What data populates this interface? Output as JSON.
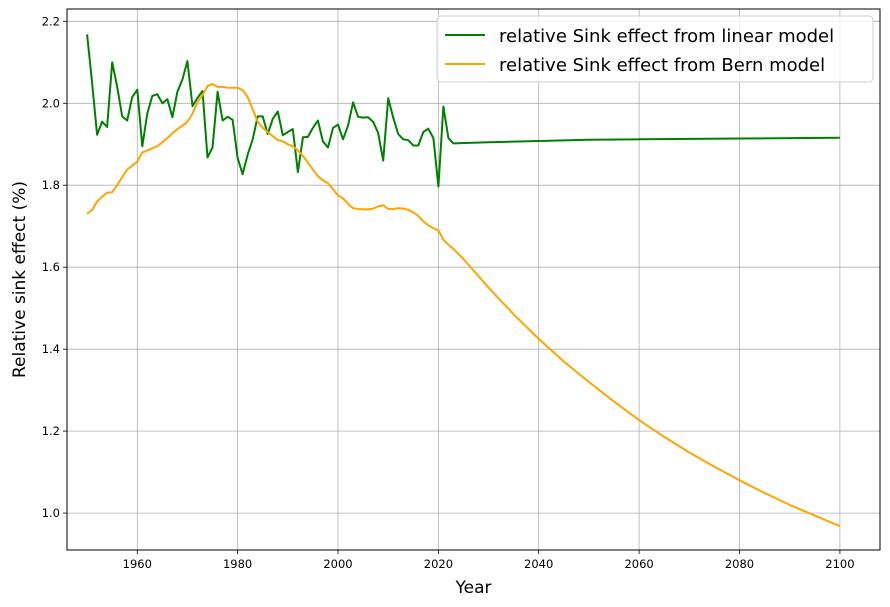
{
  "chart_data": {
    "type": "line",
    "title": "",
    "xlabel": "Year",
    "ylabel": "Relative sink effect (%)",
    "xlim": [
      1946,
      2108
    ],
    "ylim": [
      0.91,
      2.23
    ],
    "xticks": [
      1960,
      1980,
      2000,
      2020,
      2040,
      2060,
      2080,
      2100
    ],
    "yticks": [
      1.0,
      1.2,
      1.4,
      1.6,
      1.8,
      2.0,
      2.2
    ],
    "grid": true,
    "legend_position": "top-right",
    "series": [
      {
        "name": "relative Sink effect from linear model",
        "color": "#008000",
        "points": [
          [
            1950,
            2.168
          ],
          [
            1951,
            2.05
          ],
          [
            1952,
            1.923
          ],
          [
            1953,
            1.955
          ],
          [
            1954,
            1.942
          ],
          [
            1955,
            2.1
          ],
          [
            1956,
            2.04
          ],
          [
            1957,
            1.968
          ],
          [
            1958,
            1.958
          ],
          [
            1959,
            2.015
          ],
          [
            1960,
            2.033
          ],
          [
            1961,
            1.895
          ],
          [
            1962,
            1.975
          ],
          [
            1963,
            2.018
          ],
          [
            1964,
            2.022
          ],
          [
            1965,
            2.0
          ],
          [
            1966,
            2.01
          ],
          [
            1967,
            1.966
          ],
          [
            1968,
            2.028
          ],
          [
            1969,
            2.058
          ],
          [
            1970,
            2.103
          ],
          [
            1971,
            1.993
          ],
          [
            1972,
            2.013
          ],
          [
            1973,
            2.03
          ],
          [
            1974,
            1.868
          ],
          [
            1975,
            1.892
          ],
          [
            1976,
            2.028
          ],
          [
            1977,
            1.958
          ],
          [
            1978,
            1.967
          ],
          [
            1979,
            1.96
          ],
          [
            1980,
            1.867
          ],
          [
            1981,
            1.827
          ],
          [
            1982,
            1.875
          ],
          [
            1983,
            1.912
          ],
          [
            1984,
            1.968
          ],
          [
            1985,
            1.968
          ],
          [
            1986,
            1.925
          ],
          [
            1987,
            1.962
          ],
          [
            1988,
            1.98
          ],
          [
            1989,
            1.922
          ],
          [
            1990,
            1.93
          ],
          [
            1991,
            1.937
          ],
          [
            1992,
            1.832
          ],
          [
            1993,
            1.917
          ],
          [
            1994,
            1.918
          ],
          [
            1995,
            1.94
          ],
          [
            1996,
            1.958
          ],
          [
            1997,
            1.907
          ],
          [
            1998,
            1.892
          ],
          [
            1999,
            1.94
          ],
          [
            2000,
            1.948
          ],
          [
            2001,
            1.912
          ],
          [
            2002,
            1.945
          ],
          [
            2003,
            2.002
          ],
          [
            2004,
            1.967
          ],
          [
            2005,
            1.965
          ],
          [
            2006,
            1.966
          ],
          [
            2007,
            1.955
          ],
          [
            2008,
            1.928
          ],
          [
            2009,
            1.86
          ],
          [
            2010,
            2.012
          ],
          [
            2011,
            1.965
          ],
          [
            2012,
            1.925
          ],
          [
            2013,
            1.912
          ],
          [
            2014,
            1.91
          ],
          [
            2015,
            1.897
          ],
          [
            2016,
            1.897
          ],
          [
            2017,
            1.93
          ],
          [
            2018,
            1.938
          ],
          [
            2019,
            1.915
          ],
          [
            2020,
            1.797
          ],
          [
            2021,
            1.992
          ],
          [
            2022,
            1.915
          ],
          [
            2023,
            1.902
          ],
          [
            2030,
            1.905
          ],
          [
            2040,
            1.908
          ],
          [
            2050,
            1.911
          ],
          [
            2060,
            1.912
          ],
          [
            2070,
            1.913
          ],
          [
            2080,
            1.914
          ],
          [
            2090,
            1.915
          ],
          [
            2100,
            1.916
          ]
        ]
      },
      {
        "name": "relative Sink effect from Bern model",
        "color": "#FFA500",
        "points": [
          [
            1950,
            1.73
          ],
          [
            1951,
            1.74
          ],
          [
            1952,
            1.76
          ],
          [
            1953,
            1.772
          ],
          [
            1954,
            1.782
          ],
          [
            1955,
            1.783
          ],
          [
            1956,
            1.8
          ],
          [
            1957,
            1.82
          ],
          [
            1958,
            1.838
          ],
          [
            1959,
            1.848
          ],
          [
            1960,
            1.858
          ],
          [
            1961,
            1.88
          ],
          [
            1962,
            1.885
          ],
          [
            1963,
            1.89
          ],
          [
            1964,
            1.895
          ],
          [
            1965,
            1.905
          ],
          [
            1966,
            1.915
          ],
          [
            1967,
            1.927
          ],
          [
            1968,
            1.937
          ],
          [
            1969,
            1.945
          ],
          [
            1970,
            1.955
          ],
          [
            1971,
            1.975
          ],
          [
            1972,
            2.002
          ],
          [
            1973,
            2.02
          ],
          [
            1974,
            2.042
          ],
          [
            1975,
            2.047
          ],
          [
            1976,
            2.04
          ],
          [
            1977,
            2.04
          ],
          [
            1978,
            2.038
          ],
          [
            1979,
            2.038
          ],
          [
            1980,
            2.038
          ],
          [
            1981,
            2.032
          ],
          [
            1982,
            2.015
          ],
          [
            1983,
            1.985
          ],
          [
            1984,
            1.955
          ],
          [
            1985,
            1.94
          ],
          [
            1986,
            1.93
          ],
          [
            1987,
            1.92
          ],
          [
            1988,
            1.91
          ],
          [
            1989,
            1.907
          ],
          [
            1990,
            1.9
          ],
          [
            1991,
            1.895
          ],
          [
            1992,
            1.885
          ],
          [
            1993,
            1.872
          ],
          [
            1994,
            1.855
          ],
          [
            1995,
            1.838
          ],
          [
            1996,
            1.822
          ],
          [
            1997,
            1.812
          ],
          [
            1998,
            1.805
          ],
          [
            1999,
            1.79
          ],
          [
            2000,
            1.775
          ],
          [
            2001,
            1.768
          ],
          [
            2002,
            1.755
          ],
          [
            2003,
            1.744
          ],
          [
            2004,
            1.742
          ],
          [
            2005,
            1.741
          ],
          [
            2006,
            1.741
          ],
          [
            2007,
            1.743
          ],
          [
            2008,
            1.748
          ],
          [
            2009,
            1.751
          ],
          [
            2010,
            1.742
          ],
          [
            2011,
            1.742
          ],
          [
            2012,
            1.744
          ],
          [
            2013,
            1.743
          ],
          [
            2014,
            1.74
          ],
          [
            2015,
            1.734
          ],
          [
            2016,
            1.725
          ],
          [
            2017,
            1.712
          ],
          [
            2018,
            1.702
          ],
          [
            2019,
            1.695
          ],
          [
            2020,
            1.69
          ],
          [
            2021,
            1.667
          ],
          [
            2022,
            1.655
          ],
          [
            2023,
            1.645
          ],
          [
            2025,
            1.62
          ],
          [
            2030,
            1.55
          ],
          [
            2035,
            1.485
          ],
          [
            2040,
            1.425
          ],
          [
            2045,
            1.37
          ],
          [
            2050,
            1.32
          ],
          [
            2055,
            1.272
          ],
          [
            2060,
            1.227
          ],
          [
            2065,
            1.186
          ],
          [
            2070,
            1.148
          ],
          [
            2075,
            1.113
          ],
          [
            2080,
            1.08
          ],
          [
            2085,
            1.049
          ],
          [
            2090,
            1.02
          ],
          [
            2095,
            0.994
          ],
          [
            2100,
            0.968
          ]
        ]
      }
    ]
  }
}
